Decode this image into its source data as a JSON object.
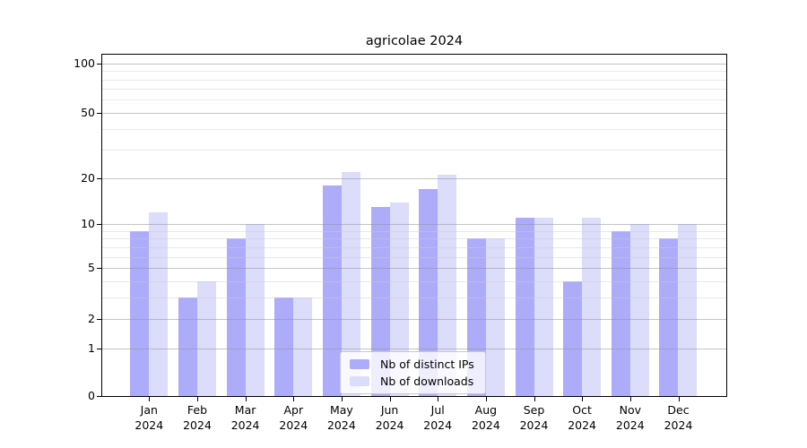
{
  "chart_data": {
    "type": "bar",
    "title": "agricolae 2024",
    "categories": [
      "Jan",
      "Feb",
      "Mar",
      "Apr",
      "May",
      "Jun",
      "Jul",
      "Aug",
      "Sep",
      "Oct",
      "Nov",
      "Dec"
    ],
    "x_year": "2024",
    "series": [
      {
        "name": "Nb of distinct IPs",
        "color": "#acacfa",
        "values": [
          9,
          3,
          8,
          3,
          18,
          13,
          17,
          8,
          11,
          4,
          9,
          8
        ]
      },
      {
        "name": "Nb of downloads",
        "color": "#dcdcfb",
        "values": [
          12,
          4,
          10,
          3,
          22,
          14,
          21,
          8,
          11,
          11,
          10,
          10
        ]
      }
    ],
    "y_axis": {
      "scale": "log1p",
      "tick_labels": [
        "0",
        "1",
        "2",
        "5",
        "10",
        "20",
        "50",
        "100"
      ],
      "ticks": [
        0,
        1,
        2,
        5,
        10,
        20,
        50,
        100
      ],
      "minor_gridlines": [
        3,
        4,
        6,
        7,
        8,
        9,
        30,
        40,
        60,
        70,
        80,
        90
      ],
      "range": [
        0,
        115
      ]
    },
    "legend": {
      "position": "bottom-center"
    },
    "grid": "on"
  }
}
